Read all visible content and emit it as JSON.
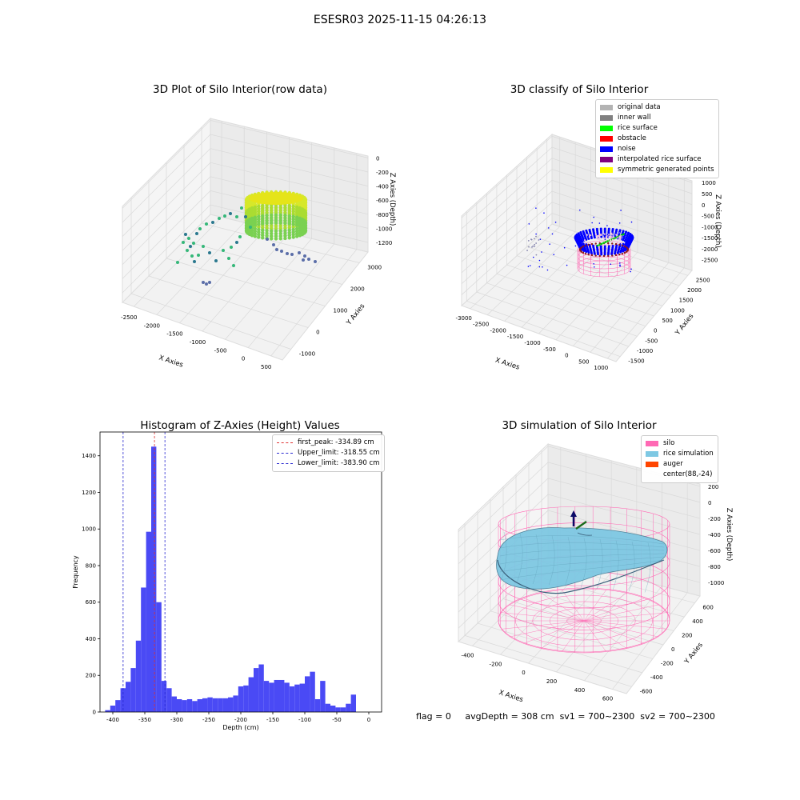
{
  "figure": {
    "suptitle": "ESESR03 2025-11-15 04:26:13"
  },
  "colors": {
    "hist_bar": "#4a4af5",
    "first_peak": "#e03030",
    "limit_lines": "#2a2ad0",
    "silo": "#ff69b4",
    "rice": "#7ec8e3",
    "auger": "#ff4500"
  },
  "chart_data": [
    {
      "type": "scatter",
      "projection": "3d",
      "title": "3D Plot of Silo Interior(row data)",
      "xlabel": "X Axies",
      "ylabel": "Y Axies",
      "zlabel": "Z Axies (Depth)",
      "x_ticks": [
        "-2500",
        "-2000",
        "-1500",
        "-1000",
        "-500",
        "0",
        "500"
      ],
      "y_ticks": [
        "-1000",
        "0",
        "1000",
        "2000",
        "3000"
      ],
      "z_ticks": [
        "0",
        "-200",
        "-400",
        "-600",
        "-800",
        "-1000",
        "-1200"
      ],
      "colormap": "viridis"
    },
    {
      "type": "scatter",
      "projection": "3d",
      "title": "3D classify of Silo Interior",
      "xlabel": "X Axies",
      "ylabel": "Y Axies",
      "zlabel": "Z Axies (Depth)",
      "x_ticks": [
        "-3000",
        "-2500",
        "-2000",
        "-1500",
        "-1000",
        "-500",
        "0",
        "500",
        "1000"
      ],
      "y_ticks": [
        "-1500",
        "-1000",
        "-500",
        "0",
        "500",
        "1000",
        "1500",
        "2000",
        "2500"
      ],
      "z_ticks": [
        "1000",
        "500",
        "0",
        "-500",
        "-1000",
        "-1500",
        "-2000",
        "-2500"
      ],
      "legend": [
        {
          "label": "original data",
          "color": "#b3b3b3"
        },
        {
          "label": "inner wall",
          "color": "#808080"
        },
        {
          "label": "rice surface",
          "color": "#00ff00"
        },
        {
          "label": "obstacle",
          "color": "#ff0000"
        },
        {
          "label": "noise",
          "color": "#0000ff"
        },
        {
          "label": "interpolated rice surface",
          "color": "#800080"
        },
        {
          "label": "symmetric generated points",
          "color": "#ffff00"
        }
      ],
      "legend_position": "top-right"
    },
    {
      "type": "bar",
      "title": "Histogram of Z-Axies (Height) Values",
      "xlabel": "Depth (cm)",
      "ylabel": "Frequency",
      "xlim": [
        -420,
        20
      ],
      "ylim": [
        0,
        1530
      ],
      "x_ticks": [
        -400,
        -350,
        -300,
        -250,
        -200,
        -150,
        -100,
        -50,
        0
      ],
      "y_ticks": [
        0,
        200,
        400,
        600,
        800,
        1000,
        1200,
        1400
      ],
      "bin_start": -412,
      "bin_width": 8,
      "values": [
        10,
        35,
        65,
        130,
        165,
        240,
        390,
        680,
        985,
        1450,
        600,
        170,
        130,
        85,
        70,
        65,
        70,
        60,
        70,
        75,
        80,
        75,
        75,
        75,
        80,
        90,
        140,
        145,
        190,
        240,
        260,
        170,
        160,
        175,
        175,
        160,
        140,
        150,
        155,
        195,
        220,
        70,
        170,
        45,
        35,
        25,
        25,
        45,
        95
      ],
      "lines": [
        {
          "label": "first_peak: -334.89 cm",
          "x": -334.89,
          "color": "#e03030"
        },
        {
          "label": "Upper_limit: -318.55 cm",
          "x": -318.55,
          "color": "#2a2ad0"
        },
        {
          "label": "Lower_limit: -383.90 cm",
          "x": -383.9,
          "color": "#2a2ad0"
        }
      ],
      "legend_position": "top-right"
    },
    {
      "type": "area",
      "projection": "3d",
      "title": "3D simulation of Silo Interior",
      "xlabel": "X Axies",
      "ylabel": "Y Axies",
      "zlabel": "Z Axies (Depth)",
      "x_ticks": [
        "-400",
        "-200",
        "0",
        "200",
        "400",
        "600"
      ],
      "y_ticks": [
        "-600",
        "-400",
        "-200",
        "0",
        "200",
        "400",
        "600"
      ],
      "z_ticks": [
        "200",
        "0",
        "-200",
        "-400",
        "-600",
        "-800",
        "-1000"
      ],
      "legend": [
        {
          "label": "silo",
          "color": "#ff69b4"
        },
        {
          "label": "rice simulation",
          "color": "#7ec8e3"
        },
        {
          "label": "auger",
          "color": "#ff4500"
        },
        {
          "label": "center(88,-24)",
          "color": ""
        }
      ],
      "legend_position": "top-right"
    }
  ],
  "status": {
    "flag": "flag = 0",
    "avg_depth": "avgDepth = 308 cm",
    "sv1": "sv1 = 700~2300",
    "sv2": "sv2 = 700~2300"
  }
}
